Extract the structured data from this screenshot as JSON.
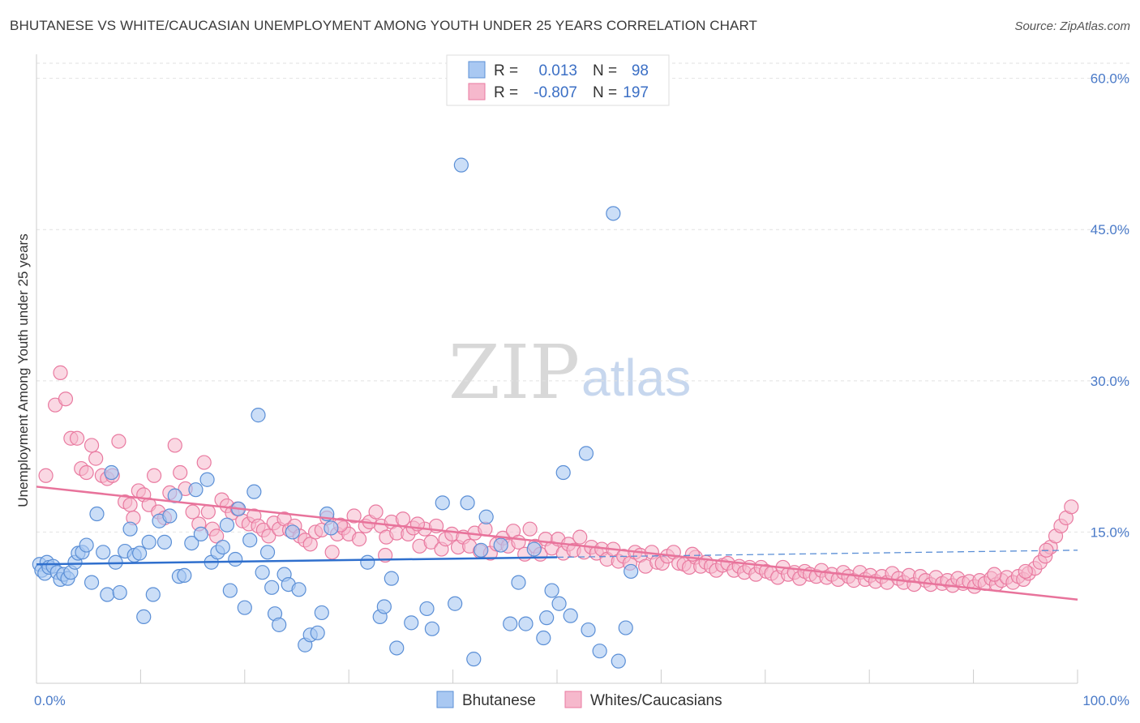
{
  "title": "BHUTANESE VS WHITE/CAUCASIAN UNEMPLOYMENT AMONG YOUTH UNDER 25 YEARS CORRELATION CHART",
  "source": "Source: ZipAtlas.com",
  "watermark": {
    "zip": "ZIP",
    "atlas": "atlas"
  },
  "legend": {
    "rows": [
      {
        "r_label": "R =",
        "r_value": "0.013",
        "n_label": "N =",
        "n_value": "98",
        "color": "#a9c8f2"
      },
      {
        "r_label": "R =",
        "r_value": "-0.807",
        "n_label": "N =",
        "n_value": "197",
        "color": "#f6b8cc"
      }
    ]
  },
  "chart_data": {
    "type": "scatter",
    "title": "BHUTANESE VS WHITE/CAUCASIAN UNEMPLOYMENT AMONG YOUTH UNDER 25 YEARS CORRELATION CHART",
    "xlabel": "",
    "ylabel": "Unemployment Among Youth under 25 years",
    "xlim": [
      0,
      100
    ],
    "ylim": [
      0,
      60
    ],
    "x_tick_labels": [
      "0.0%",
      "100.0%"
    ],
    "y_ticks": [
      15,
      30,
      45,
      60
    ],
    "y_tick_labels": [
      "15.0%",
      "30.0%",
      "45.0%",
      "60.0%"
    ],
    "grid": true,
    "legend_position": "bottom",
    "series": [
      {
        "name": "Bhutanese",
        "color": "#5b8fd6",
        "fill": "#a9c8f2",
        "r": 0.013,
        "n": 98,
        "trend": {
          "x": [
            0,
            50
          ],
          "y": [
            11.8,
            12.5
          ],
          "dashed_x": [
            50,
            100
          ],
          "dashed_y": [
            12.5,
            13.2
          ]
        },
        "points": [
          [
            0.3,
            11.8
          ],
          [
            0.5,
            11.2
          ],
          [
            0.8,
            10.9
          ],
          [
            1.0,
            12.0
          ],
          [
            1.2,
            11.5
          ],
          [
            1.6,
            11.6
          ],
          [
            2.0,
            11.0
          ],
          [
            2.3,
            10.3
          ],
          [
            2.6,
            10.8
          ],
          [
            3.0,
            10.4
          ],
          [
            3.3,
            11.0
          ],
          [
            3.7,
            12.0
          ],
          [
            4.0,
            12.9
          ],
          [
            4.4,
            13.0
          ],
          [
            4.8,
            13.7
          ],
          [
            5.3,
            10.0
          ],
          [
            5.8,
            16.8
          ],
          [
            6.4,
            13.0
          ],
          [
            6.8,
            8.8
          ],
          [
            7.2,
            20.9
          ],
          [
            7.6,
            12.0
          ],
          [
            8.0,
            9.0
          ],
          [
            8.5,
            13.1
          ],
          [
            9.0,
            15.3
          ],
          [
            9.4,
            12.7
          ],
          [
            9.9,
            12.9
          ],
          [
            10.3,
            6.6
          ],
          [
            10.8,
            14.0
          ],
          [
            11.2,
            8.8
          ],
          [
            11.8,
            16.1
          ],
          [
            12.3,
            14.0
          ],
          [
            12.8,
            16.6
          ],
          [
            13.3,
            18.6
          ],
          [
            13.7,
            10.6
          ],
          [
            14.2,
            10.7
          ],
          [
            14.9,
            13.9
          ],
          [
            15.3,
            19.2
          ],
          [
            15.8,
            14.8
          ],
          [
            16.4,
            20.2
          ],
          [
            16.8,
            12.0
          ],
          [
            17.4,
            13.0
          ],
          [
            17.9,
            13.5
          ],
          [
            18.3,
            15.7
          ],
          [
            18.6,
            9.2
          ],
          [
            19.1,
            12.3
          ],
          [
            19.4,
            17.3
          ],
          [
            20.0,
            7.5
          ],
          [
            20.5,
            14.2
          ],
          [
            20.9,
            19.0
          ],
          [
            21.3,
            26.6
          ],
          [
            21.7,
            11.0
          ],
          [
            22.2,
            13.0
          ],
          [
            22.6,
            9.5
          ],
          [
            22.9,
            6.9
          ],
          [
            23.3,
            5.8
          ],
          [
            23.8,
            10.8
          ],
          [
            24.2,
            9.8
          ],
          [
            24.6,
            15.0
          ],
          [
            25.2,
            9.3
          ],
          [
            25.8,
            3.8
          ],
          [
            26.3,
            4.8
          ],
          [
            27.0,
            5.0
          ],
          [
            27.4,
            7.0
          ],
          [
            27.9,
            16.8
          ],
          [
            28.3,
            15.4
          ],
          [
            33.0,
            6.6
          ],
          [
            33.4,
            7.6
          ],
          [
            34.6,
            3.5
          ],
          [
            36.0,
            6.0
          ],
          [
            37.5,
            7.4
          ],
          [
            38.0,
            5.4
          ],
          [
            39.0,
            17.9
          ],
          [
            40.8,
            51.4
          ],
          [
            40.2,
            7.9
          ],
          [
            41.4,
            17.9
          ],
          [
            42.0,
            2.4
          ],
          [
            43.2,
            16.5
          ],
          [
            44.6,
            13.7
          ],
          [
            45.5,
            5.9
          ],
          [
            46.3,
            10.0
          ],
          [
            47.0,
            5.9
          ],
          [
            47.8,
            13.3
          ],
          [
            48.7,
            4.5
          ],
          [
            49.0,
            6.5
          ],
          [
            49.5,
            9.2
          ],
          [
            50.2,
            7.9
          ],
          [
            50.6,
            20.9
          ],
          [
            51.3,
            6.7
          ],
          [
            53.0,
            5.3
          ],
          [
            54.1,
            3.2
          ],
          [
            52.8,
            22.8
          ],
          [
            55.4,
            46.6
          ],
          [
            56.6,
            5.5
          ],
          [
            55.9,
            2.2
          ],
          [
            57.1,
            11.1
          ],
          [
            34.1,
            10.4
          ],
          [
            31.8,
            12.0
          ],
          [
            42.7,
            13.2
          ]
        ]
      },
      {
        "name": "Whites/Caucasians",
        "color": "#e97aa0",
        "fill": "#f6b8cc",
        "r": -0.807,
        "n": 197,
        "trend": {
          "x": [
            0,
            100
          ],
          "y": [
            19.5,
            8.3
          ]
        },
        "points": [
          [
            0.9,
            20.6
          ],
          [
            1.8,
            27.6
          ],
          [
            2.3,
            30.8
          ],
          [
            2.8,
            28.2
          ],
          [
            3.3,
            24.3
          ],
          [
            3.9,
            24.3
          ],
          [
            4.3,
            21.3
          ],
          [
            4.8,
            20.9
          ],
          [
            5.3,
            23.6
          ],
          [
            5.7,
            22.3
          ],
          [
            6.3,
            20.6
          ],
          [
            6.8,
            20.3
          ],
          [
            7.3,
            20.6
          ],
          [
            7.9,
            24.0
          ],
          [
            8.5,
            18.0
          ],
          [
            9.0,
            17.7
          ],
          [
            9.3,
            16.4
          ],
          [
            9.8,
            19.1
          ],
          [
            10.3,
            18.7
          ],
          [
            10.8,
            17.7
          ],
          [
            11.3,
            20.6
          ],
          [
            11.7,
            17.0
          ],
          [
            12.3,
            16.4
          ],
          [
            12.8,
            18.9
          ],
          [
            13.3,
            23.6
          ],
          [
            13.8,
            20.9
          ],
          [
            14.3,
            19.3
          ],
          [
            15.0,
            17.0
          ],
          [
            15.6,
            15.8
          ],
          [
            16.1,
            21.9
          ],
          [
            16.5,
            17.0
          ],
          [
            16.9,
            15.3
          ],
          [
            17.3,
            14.6
          ],
          [
            17.8,
            18.2
          ],
          [
            18.3,
            17.6
          ],
          [
            18.8,
            16.9
          ],
          [
            19.3,
            17.3
          ],
          [
            19.8,
            16.1
          ],
          [
            20.4,
            15.8
          ],
          [
            20.9,
            16.6
          ],
          [
            21.3,
            15.6
          ],
          [
            21.8,
            15.2
          ],
          [
            22.3,
            14.6
          ],
          [
            22.8,
            15.9
          ],
          [
            23.3,
            15.3
          ],
          [
            23.8,
            16.3
          ],
          [
            24.3,
            15.2
          ],
          [
            24.8,
            15.6
          ],
          [
            25.3,
            14.6
          ],
          [
            25.8,
            14.2
          ],
          [
            26.3,
            13.8
          ],
          [
            26.8,
            15.0
          ],
          [
            27.4,
            15.2
          ],
          [
            27.9,
            16.4
          ],
          [
            28.4,
            13.0
          ],
          [
            28.9,
            14.8
          ],
          [
            29.5,
            15.4
          ],
          [
            30.0,
            14.8
          ],
          [
            30.5,
            16.6
          ],
          [
            31.0,
            14.3
          ],
          [
            31.6,
            15.6
          ],
          [
            32.0,
            16.0
          ],
          [
            32.6,
            17.0
          ],
          [
            33.1,
            15.6
          ],
          [
            33.6,
            14.5
          ],
          [
            34.1,
            16.0
          ],
          [
            34.6,
            14.9
          ],
          [
            35.2,
            16.3
          ],
          [
            35.7,
            14.8
          ],
          [
            36.2,
            15.4
          ],
          [
            36.8,
            13.6
          ],
          [
            37.3,
            15.3
          ],
          [
            37.9,
            14.0
          ],
          [
            38.4,
            15.6
          ],
          [
            38.9,
            13.3
          ],
          [
            39.3,
            14.3
          ],
          [
            39.9,
            14.8
          ],
          [
            40.5,
            13.5
          ],
          [
            41.0,
            14.5
          ],
          [
            41.6,
            13.6
          ],
          [
            42.1,
            14.9
          ],
          [
            42.6,
            13.1
          ],
          [
            43.1,
            15.3
          ],
          [
            43.6,
            12.9
          ],
          [
            44.2,
            13.8
          ],
          [
            44.8,
            14.4
          ],
          [
            45.3,
            13.6
          ],
          [
            45.8,
            15.1
          ],
          [
            46.3,
            14.0
          ],
          [
            46.9,
            12.8
          ],
          [
            47.4,
            15.3
          ],
          [
            47.9,
            13.6
          ],
          [
            48.4,
            12.8
          ],
          [
            48.9,
            14.3
          ],
          [
            49.5,
            13.4
          ],
          [
            50.1,
            14.3
          ],
          [
            50.6,
            12.9
          ],
          [
            51.1,
            13.8
          ],
          [
            51.6,
            13.2
          ],
          [
            52.2,
            14.5
          ],
          [
            52.6,
            13.0
          ],
          [
            53.3,
            13.5
          ],
          [
            53.8,
            12.9
          ],
          [
            54.3,
            13.3
          ],
          [
            54.8,
            12.3
          ],
          [
            55.4,
            13.3
          ],
          [
            55.9,
            12.1
          ],
          [
            56.4,
            12.6
          ],
          [
            57.0,
            11.9
          ],
          [
            57.5,
            13.0
          ],
          [
            58.0,
            12.7
          ],
          [
            58.5,
            11.6
          ],
          [
            59.1,
            13.0
          ],
          [
            59.6,
            12.0
          ],
          [
            60.1,
            11.9
          ],
          [
            60.6,
            12.6
          ],
          [
            61.2,
            13.0
          ],
          [
            61.7,
            11.9
          ],
          [
            62.2,
            11.8
          ],
          [
            62.7,
            11.5
          ],
          [
            63.3,
            12.5
          ],
          [
            63.8,
            11.6
          ],
          [
            64.3,
            12.0
          ],
          [
            64.8,
            11.6
          ],
          [
            65.3,
            11.2
          ],
          [
            65.9,
            11.7
          ],
          [
            66.4,
            11.9
          ],
          [
            67.0,
            11.2
          ],
          [
            67.5,
            11.6
          ],
          [
            68.0,
            11.0
          ],
          [
            68.5,
            11.5
          ],
          [
            69.1,
            10.8
          ],
          [
            69.6,
            11.5
          ],
          [
            70.1,
            11.1
          ],
          [
            70.6,
            10.9
          ],
          [
            71.2,
            10.5
          ],
          [
            71.7,
            11.5
          ],
          [
            72.2,
            10.8
          ],
          [
            72.8,
            11.0
          ],
          [
            73.3,
            10.4
          ],
          [
            73.8,
            11.1
          ],
          [
            74.3,
            10.8
          ],
          [
            74.9,
            10.6
          ],
          [
            75.4,
            11.2
          ],
          [
            75.9,
            10.5
          ],
          [
            76.4,
            10.8
          ],
          [
            77.0,
            10.3
          ],
          [
            77.5,
            11.0
          ],
          [
            78.0,
            10.6
          ],
          [
            78.5,
            10.2
          ],
          [
            79.1,
            11.0
          ],
          [
            79.6,
            10.3
          ],
          [
            80.1,
            10.7
          ],
          [
            80.6,
            10.1
          ],
          [
            81.2,
            10.6
          ],
          [
            81.7,
            10.0
          ],
          [
            82.2,
            10.9
          ],
          [
            82.8,
            10.4
          ],
          [
            83.3,
            10.0
          ],
          [
            83.8,
            10.7
          ],
          [
            84.3,
            9.8
          ],
          [
            84.9,
            10.6
          ],
          [
            85.4,
            10.2
          ],
          [
            85.9,
            9.8
          ],
          [
            86.4,
            10.5
          ],
          [
            87.0,
            9.9
          ],
          [
            87.5,
            10.2
          ],
          [
            88.0,
            9.7
          ],
          [
            88.5,
            10.4
          ],
          [
            89.0,
            9.9
          ],
          [
            89.6,
            10.1
          ],
          [
            90.1,
            9.6
          ],
          [
            90.6,
            10.2
          ],
          [
            91.1,
            9.9
          ],
          [
            91.7,
            10.4
          ],
          [
            92.2,
            9.8
          ],
          [
            92.7,
            10.2
          ],
          [
            93.2,
            10.5
          ],
          [
            93.8,
            10.0
          ],
          [
            94.3,
            10.6
          ],
          [
            94.8,
            10.3
          ],
          [
            95.3,
            10.9
          ],
          [
            95.9,
            11.4
          ],
          [
            96.4,
            12.0
          ],
          [
            96.9,
            12.6
          ],
          [
            97.4,
            13.5
          ],
          [
            97.9,
            14.6
          ],
          [
            98.4,
            15.6
          ],
          [
            98.9,
            16.4
          ],
          [
            99.4,
            17.5
          ],
          [
            97.0,
            13.2
          ],
          [
            95.0,
            11.1
          ],
          [
            92.0,
            10.8
          ],
          [
            63.0,
            12.8
          ],
          [
            33.5,
            12.7
          ],
          [
            29.2,
            15.7
          ],
          [
            36.6,
            15.8
          ]
        ]
      }
    ]
  },
  "bottom_legend": {
    "items": [
      {
        "label": "Bhutanese",
        "color": "#a9c8f2"
      },
      {
        "label": "Whites/Caucasians",
        "color": "#f6b8cc"
      }
    ]
  }
}
